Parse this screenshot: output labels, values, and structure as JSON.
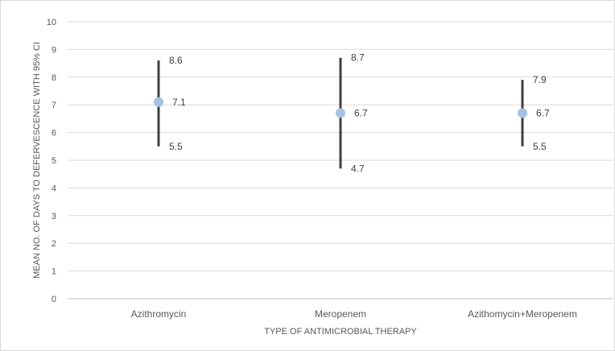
{
  "chart_data": {
    "type": "scatter",
    "title": "",
    "xlabel": "TYPE OF ANTIMICROBIAL THERAPY",
    "ylabel": "MEAN NO. OF DAYS  TO DEFERVESCENCE WITH 95% CI",
    "ylim": [
      0,
      10
    ],
    "yticks": [
      0,
      1,
      2,
      3,
      4,
      5,
      6,
      7,
      8,
      9,
      10
    ],
    "grid": true,
    "legend": "none",
    "categories": [
      "Azithromycin",
      "Meropenem",
      "Azithomycin+Meropenem"
    ],
    "series": [
      {
        "mean": [
          7.1,
          6.7,
          6.7
        ],
        "ci_low": [
          5.5,
          4.7,
          5.5
        ],
        "ci_high": [
          8.6,
          8.7,
          7.9
        ]
      }
    ],
    "marker_color": "#a6c1e3",
    "errorbar_color": "#404040",
    "grid_color": "#d9d9d9"
  }
}
